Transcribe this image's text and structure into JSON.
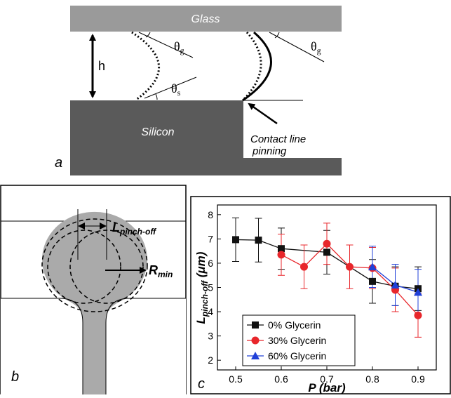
{
  "panel_a": {
    "label": "a",
    "glass": "Glass",
    "silicon": "Silicon",
    "h": "h",
    "theta_g_left": {
      "symbol": "θ",
      "sub": "g"
    },
    "theta_s": {
      "symbol": "θ",
      "sub": "s"
    },
    "theta_g_right": {
      "symbol": "θ",
      "sub": "g"
    },
    "pinning": [
      "Contact line",
      "pinning"
    ]
  },
  "panel_b": {
    "label": "b",
    "l_pinch": {
      "main": "L",
      "sub": "pinch-off"
    },
    "r_min": {
      "main": "R",
      "sub": "min"
    }
  },
  "chart_data": {
    "type": "line",
    "panel_label": "c",
    "x_label": "P (bar)",
    "y_label": {
      "main": "L",
      "sub": "pinch-off",
      "rest": " (μm)"
    },
    "xlim": [
      0.46,
      0.94
    ],
    "ylim": [
      1.6,
      8.4
    ],
    "xticks": [
      0.5,
      0.6,
      0.7,
      0.8,
      0.9
    ],
    "yticks": [
      2,
      3,
      4,
      5,
      6,
      7,
      8
    ],
    "legend": "lower left",
    "series": [
      {
        "name": "0% Glycerin",
        "color": "#111111",
        "marker": "square",
        "x": [
          0.5,
          0.55,
          0.6,
          0.7,
          0.8,
          0.85,
          0.9
        ],
        "values": [
          6.97,
          6.95,
          6.6,
          6.45,
          5.25,
          5.05,
          4.95
        ],
        "errors": [
          0.9,
          0.9,
          0.85,
          0.9,
          0.9,
          0.8,
          0.9
        ]
      },
      {
        "name": "30% Glycerin",
        "color": "#e8262b",
        "marker": "circle",
        "x": [
          0.6,
          0.65,
          0.7,
          0.75,
          0.8,
          0.85,
          0.9
        ],
        "values": [
          6.35,
          5.85,
          6.8,
          5.85,
          5.8,
          4.9,
          3.85
        ],
        "errors": [
          0.85,
          0.9,
          0.85,
          0.9,
          0.85,
          0.9,
          0.9
        ]
      },
      {
        "name": "60% Glycerin",
        "color": "#2040d8",
        "marker": "triangle",
        "x": [
          0.8,
          0.85,
          0.9
        ],
        "values": [
          5.85,
          5.1,
          4.8
        ],
        "errors": [
          0.85,
          0.85,
          0.95
        ]
      }
    ]
  }
}
